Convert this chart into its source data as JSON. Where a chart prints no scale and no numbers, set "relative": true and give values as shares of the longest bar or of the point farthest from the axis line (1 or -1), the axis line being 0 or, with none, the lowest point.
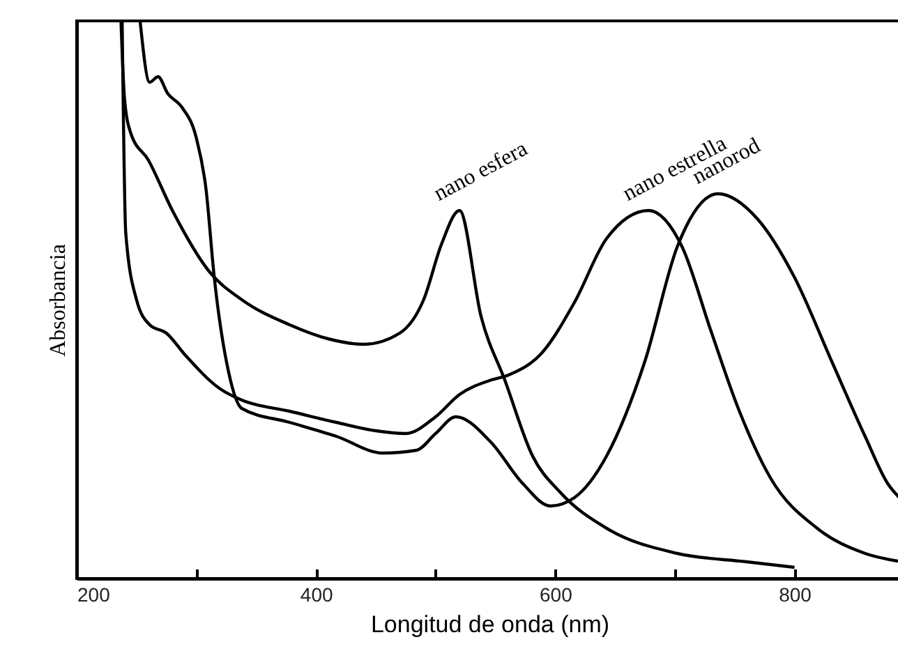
{
  "chart_data": {
    "type": "line",
    "relative": true,
    "xlabel": "Longitud de onda (nm)",
    "ylabel": "Absorbancia",
    "xlim": [
      200,
      890
    ],
    "xticks": [
      200,
      {
        "value": 300,
        "label": null
      },
      400,
      {
        "value": 500,
        "label": null
      },
      600,
      {
        "value": 700,
        "label": null
      },
      800
    ],
    "grid": false,
    "marker": "none",
    "line_style": "solid",
    "annotations": [
      {
        "text": "nano esfera",
        "x": 520,
        "y": 0.66
      },
      {
        "text": "nano estrella",
        "x": 678,
        "y": 0.66
      },
      {
        "text": "nanorod",
        "x": 736,
        "y": 0.69
      }
    ],
    "series": [
      {
        "color": "#000000",
        "x": [
          237,
          240,
          245,
          260,
          280,
          311,
          338,
          378,
          410,
          440,
          470,
          490,
          505,
          520,
          538,
          558,
          581,
          604,
          643,
          702,
          760,
          800
        ],
        "values": [
          1.0,
          0.86,
          0.8,
          0.75,
          0.66,
          0.55,
          0.5,
          0.455,
          0.43,
          0.42,
          0.44,
          0.5,
          0.6,
          0.66,
          0.47,
          0.355,
          0.22,
          0.155,
          0.09,
          0.045,
          0.03,
          0.02
        ]
      },
      {
        "color": "#000000",
        "x": [
          238,
          241,
          250,
          261,
          275,
          291,
          320,
          338,
          378,
          417,
          450,
          475,
          500,
          520,
          545,
          561,
          589,
          616,
          643,
          678,
          706,
          730,
          753,
          780,
          819,
          859,
          890
        ],
        "values": [
          1.0,
          0.62,
          0.5,
          0.455,
          0.44,
          0.4,
          0.34,
          0.32,
          0.3,
          0.28,
          0.265,
          0.26,
          0.29,
          0.33,
          0.355,
          0.365,
          0.405,
          0.495,
          0.61,
          0.66,
          0.595,
          0.445,
          0.305,
          0.18,
          0.09,
          0.045,
          0.03
        ]
      },
      {
        "color": "#000000",
        "x": [
          253,
          261,
          268,
          276,
          288,
          300,
          308,
          315,
          327,
          338,
          378,
          417,
          456,
          484,
          500,
          517,
          546,
          573,
          596,
          616,
          643,
          675,
          702,
          736,
          769,
          800,
          831,
          859,
          878,
          890
        ],
        "values": [
          1.0,
          0.89,
          0.9,
          0.87,
          0.845,
          0.79,
          0.7,
          0.54,
          0.37,
          0.305,
          0.28,
          0.255,
          0.225,
          0.23,
          0.26,
          0.29,
          0.245,
          0.17,
          0.13,
          0.145,
          0.22,
          0.39,
          0.595,
          0.69,
          0.645,
          0.54,
          0.39,
          0.255,
          0.17,
          0.14
        ]
      }
    ]
  }
}
